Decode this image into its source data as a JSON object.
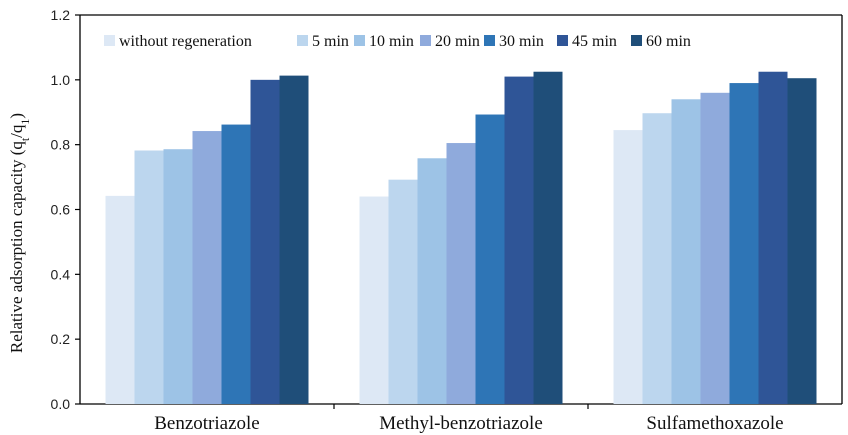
{
  "chart_data": {
    "type": "bar",
    "title": "",
    "xlabel": "",
    "ylabel": "Relative adsorption capacity (q",
    "ylabel_sub1": "t",
    "ylabel_mid": "/q",
    "ylabel_sub2": "1",
    "ylabel_end": ")",
    "ylim": [
      0,
      1.2
    ],
    "yticks": [
      "0.0",
      "0.2",
      "0.4",
      "0.6",
      "0.8",
      "1.0",
      "1.2"
    ],
    "categories": [
      "Benzotriazole",
      "Methyl-benzotriazole",
      "Sulfamethoxazole"
    ],
    "legend_position": "top",
    "grid": false,
    "series": [
      {
        "name": "without regeneration",
        "color": "#dde8f5",
        "values": [
          0.642,
          0.64,
          0.845
        ]
      },
      {
        "name": "5 min",
        "color": "#bcd6ee",
        "values": [
          0.782,
          0.692,
          0.897
        ]
      },
      {
        "name": "10 min",
        "color": "#9dc3e6",
        "values": [
          0.786,
          0.758,
          0.94
        ]
      },
      {
        "name": "20 min",
        "color": "#8faadc",
        "values": [
          0.842,
          0.805,
          0.96
        ]
      },
      {
        "name": "30 min",
        "color": "#2e75b6",
        "values": [
          0.862,
          0.893,
          0.99
        ]
      },
      {
        "name": "45 min",
        "color": "#2f5597",
        "values": [
          1.0,
          1.01,
          1.025
        ]
      },
      {
        "name": "60 min",
        "color": "#1f4e79",
        "values": [
          1.013,
          1.025,
          1.005
        ]
      }
    ]
  }
}
